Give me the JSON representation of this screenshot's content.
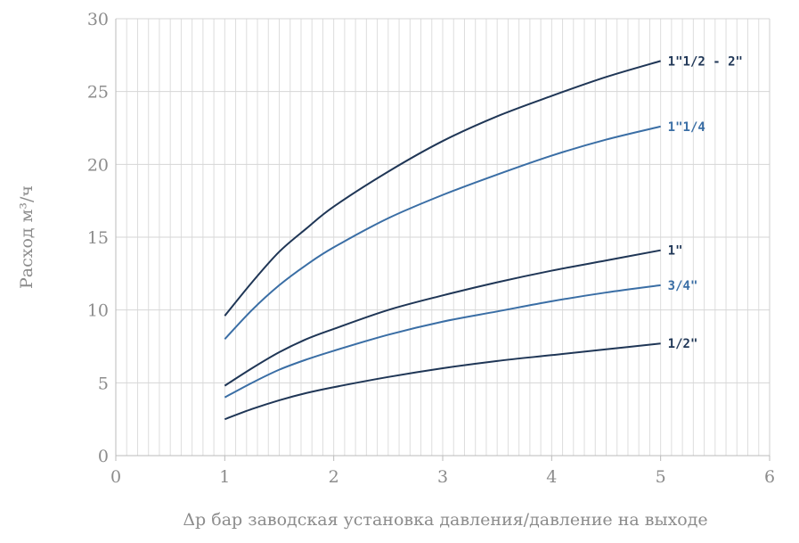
{
  "chart_data": {
    "type": "line",
    "xlabel": "Δр бар заводская установка давления/давление на выходе",
    "ylabel": "Расход м³/ч",
    "xlim": [
      0,
      6
    ],
    "ylim": [
      0,
      30
    ],
    "x_ticks": [
      "0",
      "1",
      "2",
      "3",
      "4",
      "5",
      "6"
    ],
    "y_ticks": [
      "0",
      "5",
      "10",
      "15",
      "20",
      "25",
      "30"
    ],
    "grid": true,
    "legend": "none (series labels at line ends, right)",
    "series": [
      {
        "name": "1\"1/2 - 2\"",
        "color": "#1f3656",
        "x": [
          1,
          1.25,
          1.5,
          1.75,
          2,
          2.5,
          3,
          3.5,
          4,
          4.5,
          5
        ],
        "y": [
          9.6,
          11.9,
          14.0,
          15.6,
          17.1,
          19.5,
          21.6,
          23.3,
          24.7,
          26.0,
          27.1
        ]
      },
      {
        "name": "1\"1/4",
        "color": "#3a6ea5",
        "x": [
          1,
          1.25,
          1.5,
          1.75,
          2,
          2.5,
          3,
          3.5,
          4,
          4.5,
          5
        ],
        "y": [
          8.0,
          10.0,
          11.7,
          13.1,
          14.3,
          16.3,
          17.9,
          19.3,
          20.6,
          21.7,
          22.6
        ]
      },
      {
        "name": "1\"",
        "color": "#1f3656",
        "x": [
          1,
          1.25,
          1.5,
          1.75,
          2,
          2.5,
          3,
          3.5,
          4,
          4.5,
          5
        ],
        "y": [
          4.8,
          6.0,
          7.1,
          8.0,
          8.7,
          10.0,
          11.0,
          11.9,
          12.7,
          13.4,
          14.1
        ]
      },
      {
        "name": "3/4\"",
        "color": "#3a6ea5",
        "x": [
          1,
          1.25,
          1.5,
          1.75,
          2,
          2.5,
          3,
          3.5,
          4,
          4.5,
          5
        ],
        "y": [
          4.0,
          5.0,
          5.9,
          6.6,
          7.2,
          8.3,
          9.2,
          9.9,
          10.6,
          11.2,
          11.7
        ]
      },
      {
        "name": "1/2\"",
        "color": "#1f3656",
        "x": [
          1,
          1.25,
          1.5,
          1.75,
          2,
          2.5,
          3,
          3.5,
          4,
          4.5,
          5
        ],
        "y": [
          2.5,
          3.2,
          3.8,
          4.3,
          4.7,
          5.4,
          6.0,
          6.5,
          6.9,
          7.3,
          7.7
        ]
      }
    ]
  }
}
